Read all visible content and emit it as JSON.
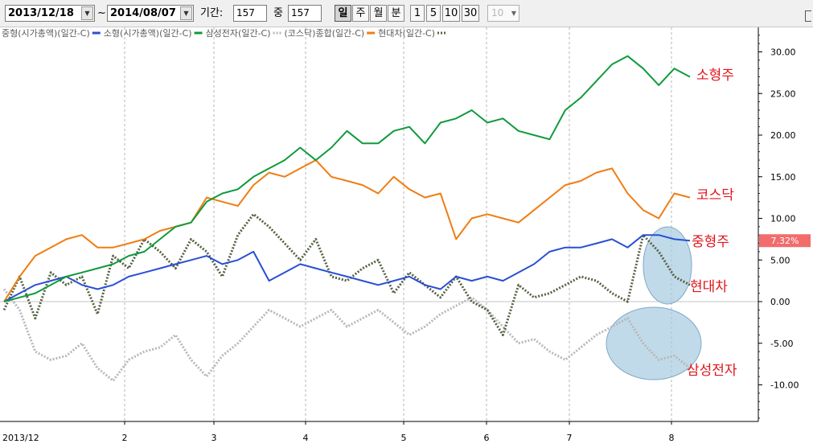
{
  "toolbar": {
    "start_date": "2013/12/18",
    "tilde": "~",
    "end_date": "2014/08/07",
    "period_label": "기간:",
    "period_value": "157",
    "middle_label": "중",
    "middle_value": "157",
    "period_buttons": [
      "일",
      "주",
      "월",
      "분"
    ],
    "active_period": "일",
    "interval_buttons": [
      "1",
      "5",
      "10",
      "30"
    ],
    "interval_select": "10"
  },
  "chart_data": {
    "type": "line",
    "y_unit": "%",
    "ylim": [
      -14,
      33
    ],
    "y_ticks": [
      "30.00",
      "25.00",
      "20.00",
      "15.00",
      "10.00",
      "5.00",
      "0.00",
      "-5.00",
      "-10.00"
    ],
    "x_labels": [
      "2013/12",
      "2",
      "3",
      "4",
      "5",
      "6",
      "7",
      "8"
    ],
    "current_value_label": "7.32%",
    "legend": [
      {
        "text": "중형(시가총액)(일간-C)",
        "color": "#2a4fd3"
      },
      {
        "text": "소형(시가총액)(일간-C)",
        "color": "#109a3c"
      },
      {
        "text": "삼성전자(일간-C)",
        "color": "#b8b8b8"
      },
      {
        "text": "(코스닥)종합(일간-C)",
        "color": "#f07d12"
      },
      {
        "text": "현대차(일간-C)",
        "color": "#546242"
      }
    ],
    "annotations": [
      "소형주",
      "코스닥",
      "중형주",
      "현대차",
      "삼성전자"
    ],
    "series": [
      {
        "name": "소형(시가총액)(일간-C)",
        "color": "#109a3c",
        "style": "solid",
        "values": [
          0.0,
          0.5,
          1.0,
          2.0,
          3.0,
          3.5,
          4.0,
          4.5,
          5.5,
          6.0,
          7.5,
          9.0,
          9.5,
          12.0,
          13.0,
          13.5,
          15.0,
          16.0,
          17.0,
          18.5,
          17.0,
          18.5,
          20.5,
          19.0,
          19.0,
          20.5,
          21.0,
          19.0,
          21.5,
          22.0,
          23.0,
          21.5,
          22.0,
          20.5,
          20.0,
          19.5,
          23.0,
          24.5,
          26.5,
          28.5,
          29.5,
          28.0,
          26.0,
          28.0,
          27.0
        ]
      },
      {
        "name": "(코스닥)종합(일간-C)",
        "color": "#f07d12",
        "style": "solid",
        "values": [
          0.0,
          3.0,
          5.5,
          6.5,
          7.5,
          8.0,
          6.5,
          6.5,
          7.0,
          7.5,
          8.5,
          9.0,
          9.5,
          12.5,
          12.0,
          11.5,
          14.0,
          15.5,
          15.0,
          16.0,
          17.0,
          15.0,
          14.5,
          14.0,
          13.0,
          15.0,
          13.5,
          12.5,
          13.0,
          7.5,
          10.0,
          10.5,
          10.0,
          9.5,
          11.0,
          12.5,
          14.0,
          14.5,
          15.5,
          16.0,
          13.0,
          11.0,
          10.0,
          13.0,
          12.5
        ]
      },
      {
        "name": "중형(시가총액)(일간-C)",
        "color": "#2a4fd3",
        "style": "solid",
        "values": [
          0.0,
          1.0,
          2.0,
          2.5,
          3.0,
          2.0,
          1.5,
          2.0,
          3.0,
          3.5,
          4.0,
          4.5,
          5.0,
          5.5,
          4.5,
          5.0,
          6.0,
          2.5,
          3.5,
          4.5,
          4.0,
          3.5,
          3.0,
          2.5,
          2.0,
          2.5,
          3.0,
          2.0,
          1.5,
          3.0,
          2.5,
          3.0,
          2.5,
          3.5,
          4.5,
          6.0,
          6.5,
          6.5,
          7.0,
          7.5,
          6.5,
          8.0,
          8.0,
          7.5,
          7.32
        ]
      },
      {
        "name": "현대차(일간-C)",
        "color": "#546242",
        "style": "dotted",
        "values": [
          -1.0,
          3.0,
          -2.0,
          3.5,
          2.0,
          3.0,
          -1.5,
          5.5,
          4.0,
          7.5,
          6.0,
          4.0,
          7.5,
          6.0,
          3.0,
          8.0,
          10.5,
          9.0,
          7.0,
          5.0,
          7.5,
          3.0,
          2.5,
          4.0,
          5.0,
          1.0,
          3.5,
          2.0,
          0.5,
          3.0,
          0.0,
          -1.0,
          -4.0,
          2.0,
          0.5,
          1.0,
          2.0,
          3.0,
          2.5,
          1.0,
          0.0,
          8.0,
          6.0,
          3.0,
          2.0
        ]
      },
      {
        "name": "삼성전자(일간-C)",
        "color": "#b8b8b8",
        "style": "dotted",
        "values": [
          1.5,
          -1.0,
          -6.0,
          -7.0,
          -6.5,
          -5.0,
          -8.0,
          -9.5,
          -7.0,
          -6.0,
          -5.5,
          -4.0,
          -7.0,
          -9.0,
          -6.5,
          -5.0,
          -3.0,
          -1.0,
          -2.0,
          -3.0,
          -2.0,
          -1.0,
          -3.0,
          -2.0,
          -1.0,
          -2.5,
          -4.0,
          -3.0,
          -1.5,
          -0.5,
          0.5,
          -1.0,
          -3.0,
          -5.0,
          -4.5,
          -6.0,
          -7.0,
          -5.5,
          -4.0,
          -3.0,
          -2.0,
          -5.0,
          -7.0,
          -6.5,
          -8.0
        ]
      }
    ]
  }
}
